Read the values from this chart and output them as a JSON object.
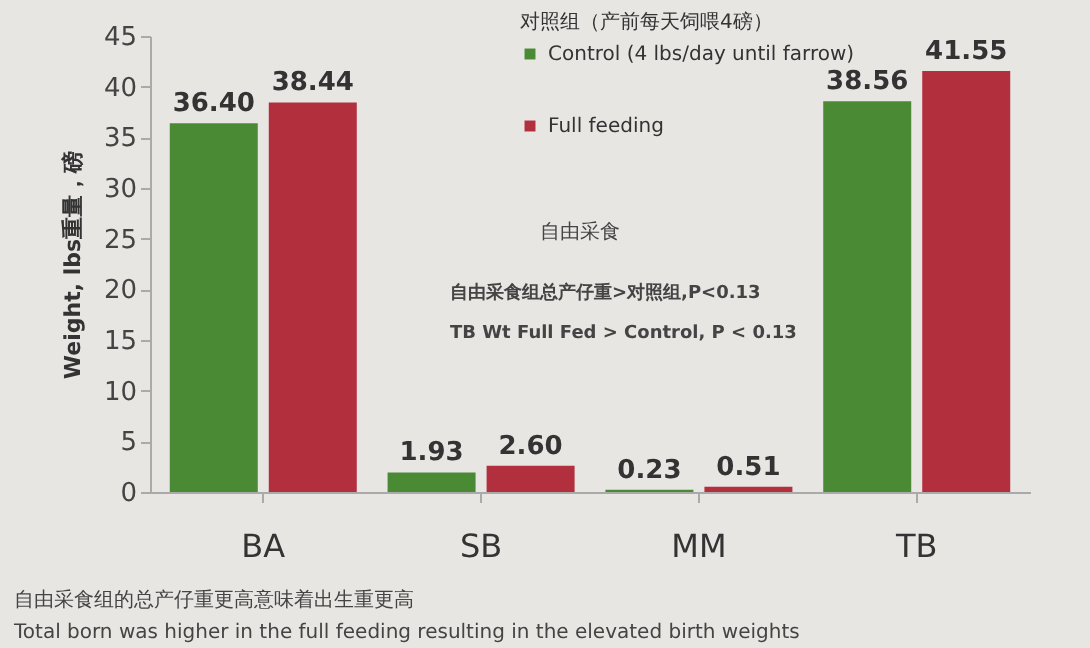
{
  "chart_data": {
    "type": "bar",
    "ylabel": "Weight, lbs重量，磅",
    "legend_title": "对照组（产前每天饲喂4磅）",
    "categories": [
      "BA",
      "SB",
      "MM",
      "TB"
    ],
    "series": [
      {
        "name": "Control (4 lbs/day until farrow)",
        "color": "#4b8a35",
        "values": [
          36.4,
          1.93,
          0.23,
          38.56
        ],
        "value_labels": [
          "36.40",
          "1.93",
          "0.23",
          "38.56"
        ]
      },
      {
        "name": "Full feeding",
        "color": "#b22f3e",
        "values": [
          38.44,
          2.6,
          0.51,
          41.55
        ],
        "value_labels": [
          "38.44",
          "2.60",
          "0.51",
          "41.55"
        ]
      }
    ],
    "ylim": [
      0,
      45
    ],
    "yticks": [
      0,
      5,
      10,
      15,
      20,
      25,
      30,
      35,
      40,
      45
    ],
    "data_labels": true,
    "grid": false,
    "legend": "top",
    "annotations": [
      "自由采食",
      "自由采食组总产仔重>对照组,P<0.13",
      "TB Wt Full Fed > Control, P < 0.13",
      "自由采食组的总产仔重更高意味着出生重更高",
      "Total born was higher in the full feeding resulting in the elevated birth weights"
    ]
  }
}
